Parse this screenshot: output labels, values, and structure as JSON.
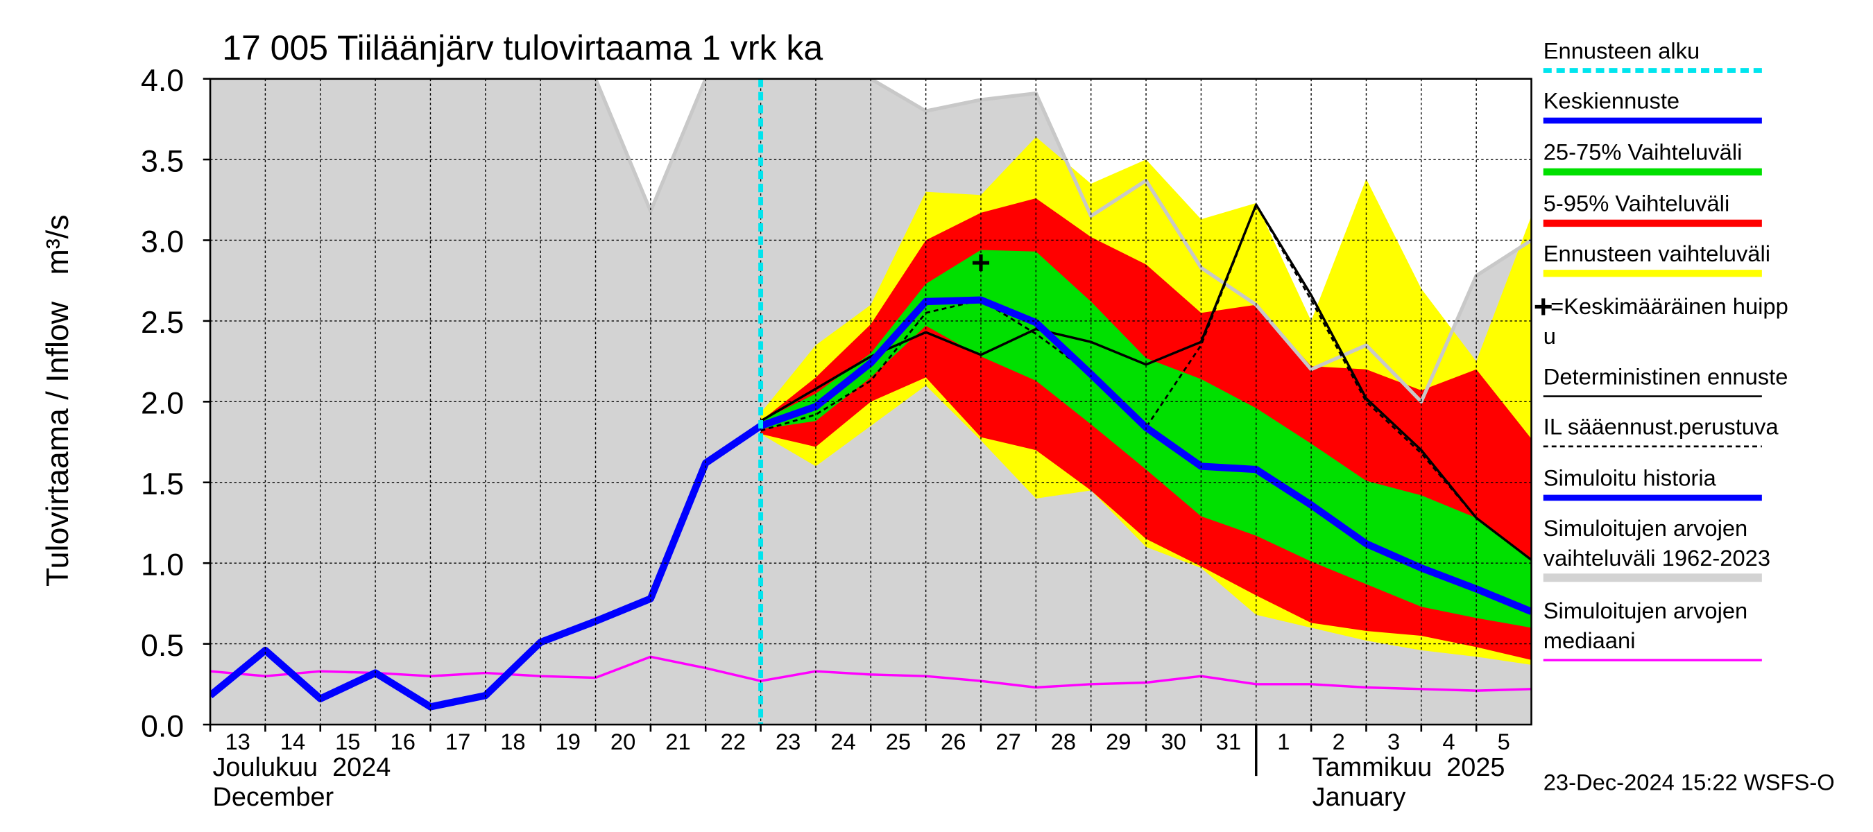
{
  "chart_data": {
    "type": "line",
    "title": "17 005 Tiiläänjärv tulovirtaama 1 vrk ka",
    "ylabel": [
      "Tulovirtaama / Inflow",
      "m³/s"
    ],
    "x": [
      0,
      1,
      2,
      3,
      4,
      5,
      6,
      7,
      8,
      9,
      10,
      11,
      12,
      13,
      14,
      15,
      16,
      17,
      18,
      19,
      20,
      21,
      22,
      23,
      24
    ],
    "xlim": [
      0,
      24
    ],
    "xticks": [
      {
        "value": 0,
        "label": "13"
      },
      {
        "value": 1,
        "label": "14"
      },
      {
        "value": 2,
        "label": "15"
      },
      {
        "value": 3,
        "label": "16"
      },
      {
        "value": 4,
        "label": "17"
      },
      {
        "value": 5,
        "label": "18"
      },
      {
        "value": 6,
        "label": "19"
      },
      {
        "value": 7,
        "label": "20"
      },
      {
        "value": 8,
        "label": "21"
      },
      {
        "value": 9,
        "label": "22"
      },
      {
        "value": 10,
        "label": "23"
      },
      {
        "value": 11,
        "label": "24"
      },
      {
        "value": 12,
        "label": "25"
      },
      {
        "value": 13,
        "label": "26"
      },
      {
        "value": 14,
        "label": "27"
      },
      {
        "value": 15,
        "label": "28"
      },
      {
        "value": 16,
        "label": "29"
      },
      {
        "value": 17,
        "label": "30"
      },
      {
        "value": 18,
        "label": "31"
      },
      {
        "value": 19,
        "label": "1"
      },
      {
        "value": 20,
        "label": "2"
      },
      {
        "value": 21,
        "label": "3"
      },
      {
        "value": 22,
        "label": "4"
      },
      {
        "value": 23,
        "label": "5"
      }
    ],
    "month_labels": [
      {
        "x": 0,
        "lines": [
          "Joulukuu  2024",
          "December"
        ]
      },
      {
        "x": 19,
        "lines": [
          "Tammikuu  2025",
          "January"
        ]
      }
    ],
    "ylim": [
      0,
      4
    ],
    "yticks": [
      {
        "value": 0,
        "label": "0.0"
      },
      0.5,
      {
        "value": 1,
        "label": "1.0"
      },
      1.5,
      {
        "value": 2,
        "label": "2.0"
      },
      2.5,
      {
        "value": 3,
        "label": "3.0"
      },
      3.5,
      {
        "value": 4,
        "label": "4.0"
      }
    ],
    "grid": true,
    "forecast_start": {
      "name": [
        "Ennusteen alku"
      ],
      "x": 10,
      "color": "#00e5ee"
    },
    "peak": {
      "name": [
        "=Keskimääräinen huipp",
        "u"
      ],
      "x": 14,
      "value": 2.86,
      "color": "#000000"
    },
    "series": [
      {
        "name": [
          "Simuloitujen arvojen",
          "vaihteluväli 1962-2023"
        ],
        "kind": "band",
        "color": "#d3d3d3",
        "low": [
          0,
          0,
          0,
          0,
          0,
          0,
          0,
          0,
          0,
          0,
          0,
          0,
          0,
          0,
          0,
          0,
          0,
          0,
          0,
          0,
          0,
          0,
          0,
          0,
          0
        ],
        "high": [
          4,
          4,
          4,
          4,
          4,
          4,
          4,
          4,
          3.18,
          4,
          4,
          4,
          4,
          3.8,
          3.87,
          3.91,
          3.15,
          3.37,
          2.83,
          2.6,
          2.2,
          2.35,
          2.0,
          2.78,
          3.0
        ]
      },
      {
        "name": [
          "Ennusteen vaihteluväli"
        ],
        "kind": "band",
        "color": "#ffff00",
        "low": [
          null,
          null,
          null,
          null,
          null,
          null,
          null,
          null,
          null,
          null,
          1.8,
          1.6,
          1.85,
          2.1,
          1.76,
          1.4,
          1.45,
          1.1,
          0.97,
          0.68,
          0.6,
          0.52,
          0.46,
          0.42,
          0.37
        ],
        "high": [
          null,
          null,
          null,
          null,
          null,
          null,
          null,
          null,
          null,
          null,
          1.93,
          2.35,
          2.6,
          3.3,
          3.28,
          3.64,
          3.35,
          3.5,
          3.13,
          3.23,
          2.5,
          3.38,
          2.7,
          2.25,
          3.15
        ]
      },
      {
        "name": [
          "5-95% Vaihteluväli"
        ],
        "kind": "band",
        "color": "#ff0000",
        "low": [
          null,
          null,
          null,
          null,
          null,
          null,
          null,
          null,
          null,
          null,
          1.8,
          1.72,
          2.0,
          2.15,
          1.78,
          1.7,
          1.45,
          1.15,
          0.98,
          0.8,
          0.63,
          0.58,
          0.55,
          0.48,
          0.4
        ],
        "high": [
          null,
          null,
          null,
          null,
          null,
          null,
          null,
          null,
          null,
          null,
          1.88,
          2.15,
          2.48,
          3.0,
          3.17,
          3.26,
          3.02,
          2.85,
          2.55,
          2.6,
          2.22,
          2.2,
          2.07,
          2.2,
          1.77
        ]
      },
      {
        "name": [
          "25-75% Vaihteluväli"
        ],
        "kind": "band",
        "color": "#00e000",
        "low": [
          null,
          null,
          null,
          null,
          null,
          null,
          null,
          null,
          null,
          null,
          1.83,
          1.88,
          2.15,
          2.47,
          2.28,
          2.13,
          1.86,
          1.58,
          1.29,
          1.17,
          1.01,
          0.87,
          0.73,
          0.66,
          0.6
        ],
        "high": [
          null,
          null,
          null,
          null,
          null,
          null,
          null,
          null,
          null,
          null,
          1.88,
          2.05,
          2.3,
          2.73,
          2.94,
          2.93,
          2.62,
          2.27,
          2.14,
          1.96,
          1.74,
          1.51,
          1.42,
          1.28,
          1.03
        ]
      },
      {
        "name": [
          "Simuloitujen arvojen",
          "mediaani"
        ],
        "kind": "line",
        "color": "#ff00ff",
        "values": [
          0.33,
          0.3,
          0.33,
          0.32,
          0.3,
          0.32,
          0.3,
          0.29,
          0.42,
          0.35,
          0.27,
          0.33,
          0.31,
          0.3,
          0.27,
          0.23,
          0.25,
          0.26,
          0.3,
          0.25,
          0.25,
          0.23,
          0.22,
          0.21,
          0.22
        ]
      },
      {
        "name": [
          "Deterministinen ennuste"
        ],
        "kind": "line",
        "color": "#000000",
        "values": [
          null,
          null,
          null,
          null,
          null,
          null,
          null,
          null,
          null,
          null,
          1.88,
          2.08,
          2.28,
          2.43,
          2.29,
          2.45,
          2.37,
          2.23,
          2.37,
          3.22,
          2.66,
          2.02,
          1.7,
          1.28,
          1.02
        ]
      },
      {
        "name": [
          "IL sääennust.perustuva"
        ],
        "kind": "line",
        "color": "#000000",
        "dashed": true,
        "values": [
          null,
          null,
          null,
          null,
          null,
          null,
          null,
          null,
          null,
          null,
          1.82,
          1.92,
          2.13,
          2.55,
          2.63,
          2.42,
          2.17,
          1.84,
          2.35,
          3.22,
          2.63,
          2.0,
          1.68,
          1.28,
          1.02
        ]
      },
      {
        "name": [
          "Simuloitu historia"
        ],
        "kind": "line",
        "color": "#0000ff",
        "values": [
          0.18,
          0.46,
          0.16,
          0.32,
          0.11,
          0.18,
          0.51,
          0.64,
          0.78,
          1.62,
          1.85,
          null,
          null,
          null,
          null,
          null,
          null,
          null,
          null,
          null,
          null,
          null,
          null,
          null,
          null
        ]
      },
      {
        "name": [
          "Keskiennuste"
        ],
        "kind": "line",
        "color": "#0000ff",
        "values": [
          null,
          null,
          null,
          null,
          null,
          null,
          null,
          null,
          null,
          null,
          1.85,
          1.97,
          2.24,
          2.62,
          2.63,
          2.49,
          2.17,
          1.84,
          1.6,
          1.58,
          1.36,
          1.12,
          0.97,
          0.84,
          0.7
        ]
      }
    ],
    "footer": "23-Dec-2024 15:22 WSFS-O"
  }
}
